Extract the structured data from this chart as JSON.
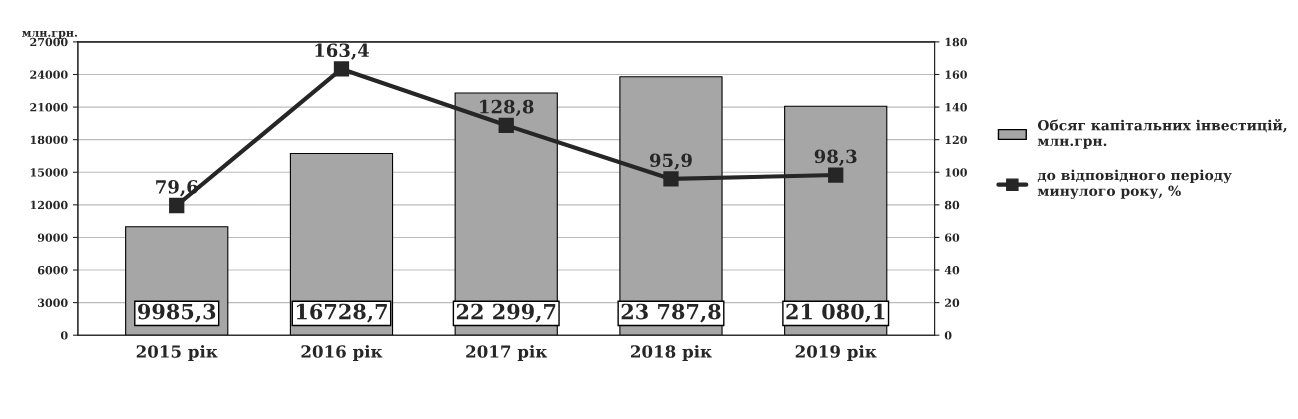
{
  "chart_data": {
    "type": "bar",
    "ylabel": "млн.грн.",
    "categories": [
      "2015 рік",
      "2016 рік",
      "2017 рік",
      "2018 рік",
      "2019 рік"
    ],
    "series": [
      {
        "name": "Обсяг капітальних інвестицій, млн.грн.",
        "color": "#a6a6a6",
        "values": [
          9985.3,
          16728.7,
          22299.7,
          23787.8,
          21080.1
        ],
        "value_labels": [
          "9985,3",
          "16728,7",
          "22 299,7",
          "23 787,8",
          "21 080,1"
        ]
      },
      {
        "name": "до відповідного періоду минулого року, %",
        "type": "line",
        "axis": "y2",
        "color": "#262626",
        "marker": "square",
        "values": [
          79.6,
          163.4,
          128.8,
          95.9,
          98.3
        ],
        "value_labels": [
          "79,6",
          "163,4",
          "128,8",
          "95,9",
          "98,3"
        ]
      }
    ],
    "ylim": [
      0,
      27000
    ],
    "yticks": [
      0,
      3000,
      6000,
      9000,
      12000,
      15000,
      18000,
      21000,
      24000,
      27000
    ],
    "y2lim": [
      0,
      180
    ],
    "y2ticks": [
      0,
      20,
      40,
      60,
      80,
      100,
      120,
      140,
      160,
      180
    ],
    "grid": "y",
    "legend": "right"
  }
}
